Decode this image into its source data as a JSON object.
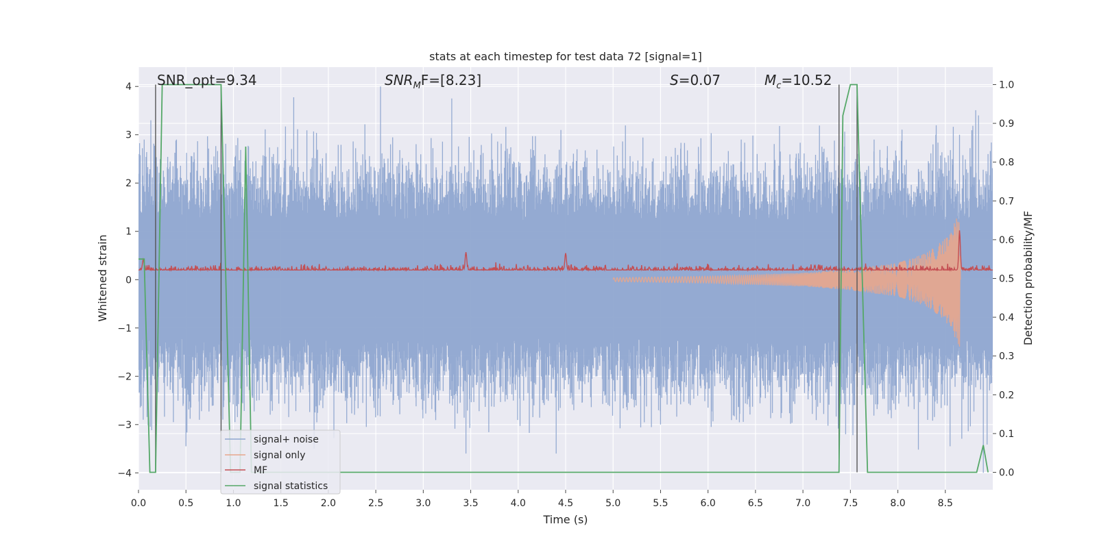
{
  "chart_data": {
    "type": "line",
    "title": "stats at each timestep for test data 72 [signal=1]",
    "xlabel": "Time (s)",
    "ylabel_left": "Whitened strain",
    "ylabel_right": "Detection probability/MF",
    "xlim": [
      0.0,
      9.0
    ],
    "ylim_left": [
      -4.35,
      4.4
    ],
    "ylim_right": [
      -0.045,
      1.045
    ],
    "x_ticks": [
      "0.0",
      "0.5",
      "1.0",
      "1.5",
      "2.0",
      "2.5",
      "3.0",
      "3.5",
      "4.0",
      "4.5",
      "5.0",
      "5.5",
      "6.0",
      "6.5",
      "7.0",
      "7.5",
      "8.0",
      "8.5"
    ],
    "y_ticks_left": [
      "4",
      "3",
      "2",
      "1",
      "0",
      "−1",
      "−2",
      "−3",
      "−4"
    ],
    "y_ticks_right": [
      "1.0",
      "0.9",
      "0.8",
      "0.7",
      "0.6",
      "0.5",
      "0.4",
      "0.3",
      "0.2",
      "0.1",
      "0.0"
    ],
    "grid": true,
    "legend_placement": "lower-left",
    "annotations": {
      "snr_opt": "SNR_opt=9.34",
      "snr_mf_label": "SNR",
      "snr_mf_sub": "M",
      "snr_mf_rest": "F=[8.23]",
      "s_label": "S",
      "s_rest": "=0.07",
      "mc_label": "M",
      "mc_sub": "c",
      "mc_rest": "=10.52"
    },
    "vertical_markers_s": [
      0.18,
      0.87,
      7.38,
      7.57
    ],
    "series": [
      {
        "name": "signal+ noise",
        "color": "#8fa6d0",
        "axis": "left",
        "description": "whitened strain, noise envelope",
        "envelope_peaks_high": [
          [
            0.0,
            2.6
          ],
          [
            0.06,
            2.9
          ],
          [
            0.13,
            3.3
          ],
          [
            0.4,
            2.9
          ],
          [
            0.87,
            3.2
          ],
          [
            1.16,
            2.75
          ],
          [
            1.55,
            2.5
          ],
          [
            2.55,
            4.0
          ],
          [
            3.3,
            3.75
          ],
          [
            4.45,
            3.1
          ],
          [
            5.6,
            2.2
          ],
          [
            6.35,
            2.9
          ],
          [
            7.2,
            2.75
          ],
          [
            7.75,
            2.9
          ],
          [
            8.65,
            3.0
          ],
          [
            8.85,
            3.4
          ],
          [
            8.95,
            2.6
          ]
        ],
        "envelope_peaks_low": [
          [
            0.05,
            -2.9
          ],
          [
            0.5,
            -3.45
          ],
          [
            0.9,
            -2.5
          ],
          [
            1.85,
            -3.5
          ],
          [
            2.4,
            -3.05
          ],
          [
            3.45,
            -3.6
          ],
          [
            4.4,
            -3.6
          ],
          [
            5.5,
            -3.0
          ],
          [
            6.3,
            -2.9
          ],
          [
            7.45,
            -3.2
          ],
          [
            8.55,
            -3.45
          ],
          [
            8.9,
            -4.0
          ]
        ]
      },
      {
        "name": "signal only",
        "color": "#e8a68c",
        "axis": "left",
        "description": "chirp waveform growing toward merger",
        "amplitude_points": [
          [
            5.0,
            0.04
          ],
          [
            6.0,
            0.07
          ],
          [
            7.0,
            0.14
          ],
          [
            7.5,
            0.22
          ],
          [
            8.0,
            0.35
          ],
          [
            8.3,
            0.55
          ],
          [
            8.5,
            0.85
          ],
          [
            8.6,
            1.2
          ],
          [
            8.65,
            1.4
          ],
          [
            8.66,
            0.0
          ]
        ]
      },
      {
        "name": "MF",
        "color": "#c44e52",
        "axis": "left",
        "description": "matched filter output",
        "baseline": 0.2,
        "peaks": [
          [
            0.05,
            0.42
          ],
          [
            3.45,
            0.57
          ],
          [
            4.5,
            0.55
          ],
          [
            8.65,
            1.02
          ]
        ]
      },
      {
        "name": "signal statistics",
        "color": "#55a868",
        "axis": "right",
        "points": [
          [
            0.0,
            0.55
          ],
          [
            0.06,
            0.55
          ],
          [
            0.12,
            0.0
          ],
          [
            0.18,
            0.0
          ],
          [
            0.25,
            1.0
          ],
          [
            0.87,
            1.0
          ],
          [
            0.97,
            0.0
          ],
          [
            1.07,
            0.0
          ],
          [
            1.13,
            0.84
          ],
          [
            1.19,
            0.0
          ],
          [
            7.38,
            0.0
          ],
          [
            7.42,
            0.92
          ],
          [
            7.5,
            1.0
          ],
          [
            7.57,
            1.0
          ],
          [
            7.68,
            0.0
          ],
          [
            8.83,
            0.0
          ],
          [
            8.9,
            0.07
          ],
          [
            8.95,
            0.0
          ]
        ]
      }
    ]
  }
}
